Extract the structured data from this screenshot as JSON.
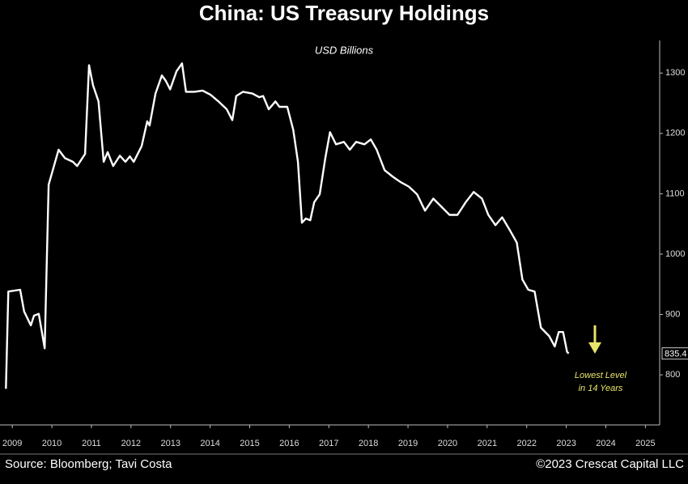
{
  "chart_data": {
    "type": "line",
    "title": "China: US Treasury Holdings",
    "subtitle": "USD Billions",
    "annotation": [
      "Lowest Level",
      "in 14 Years"
    ],
    "source": "Source: Bloomberg; Tavi Costa",
    "copyright": "©2023 Crescat Capital LLC",
    "x": [
      2008.84,
      2008.9,
      2009.2,
      2009.3,
      2009.47,
      2009.55,
      2009.67,
      2009.82,
      2009.92,
      2010.17,
      2010.33,
      2010.53,
      2010.64,
      2010.84,
      2010.94,
      2011.04,
      2011.18,
      2011.31,
      2011.41,
      2011.55,
      2011.72,
      2011.86,
      2011.97,
      2012.07,
      2012.27,
      2012.41,
      2012.47,
      2012.62,
      2012.78,
      2012.88,
      2012.99,
      2013.15,
      2013.29,
      2013.39,
      2013.6,
      2013.81,
      2014.01,
      2014.21,
      2014.42,
      2014.56,
      2014.66,
      2014.83,
      2015.07,
      2015.24,
      2015.34,
      2015.48,
      2015.65,
      2015.75,
      2015.95,
      2016.1,
      2016.22,
      2016.32,
      2016.42,
      2016.53,
      2016.63,
      2016.77,
      2016.91,
      2017.03,
      2017.18,
      2017.38,
      2017.53,
      2017.69,
      2017.9,
      2018.06,
      2018.21,
      2018.41,
      2018.62,
      2018.82,
      2019.02,
      2019.23,
      2019.43,
      2019.64,
      2019.84,
      2020.05,
      2020.25,
      2020.46,
      2020.66,
      2020.87,
      2021.03,
      2021.21,
      2021.38,
      2021.58,
      2021.75,
      2021.89,
      2022.04,
      2022.2,
      2022.36,
      2022.57,
      2022.71,
      2022.81,
      2022.92,
      2023.02,
      2023.06
    ],
    "series": [
      {
        "name": "China US Treasury Holdings",
        "color": "#ffffff",
        "values": [
          777,
          938,
          941,
          905,
          882,
          898,
          901,
          844,
          1115,
          1173,
          1159,
          1153,
          1146,
          1166,
          1313,
          1280,
          1253,
          1153,
          1169,
          1146,
          1163,
          1153,
          1162,
          1153,
          1179,
          1220,
          1213,
          1266,
          1296,
          1287,
          1273,
          1303,
          1316,
          1269,
          1269,
          1271,
          1264,
          1253,
          1240,
          1222,
          1262,
          1269,
          1266,
          1260,
          1262,
          1240,
          1253,
          1244,
          1244,
          1206,
          1153,
          1052,
          1059,
          1056,
          1086,
          1099,
          1159,
          1202,
          1182,
          1186,
          1173,
          1186,
          1182,
          1190,
          1173,
          1139,
          1128,
          1119,
          1112,
          1099,
          1072,
          1092,
          1079,
          1065,
          1065,
          1086,
          1103,
          1092,
          1065,
          1048,
          1061,
          1039,
          1019,
          958,
          941,
          938,
          878,
          864,
          847,
          871,
          871,
          838,
          835.4
        ]
      }
    ],
    "xlim": [
      2008.69,
      2025.36
    ],
    "xticks": [
      2009,
      2010,
      2011,
      2012,
      2013,
      2014,
      2015,
      2016,
      2017,
      2018,
      2019,
      2020,
      2021,
      2022,
      2023,
      2024,
      2025
    ],
    "ylim": [
      717,
      1354
    ],
    "yticks": [
      800,
      900,
      1000,
      1100,
      1200,
      1300
    ],
    "annotation_color": "#e8e46a"
  }
}
